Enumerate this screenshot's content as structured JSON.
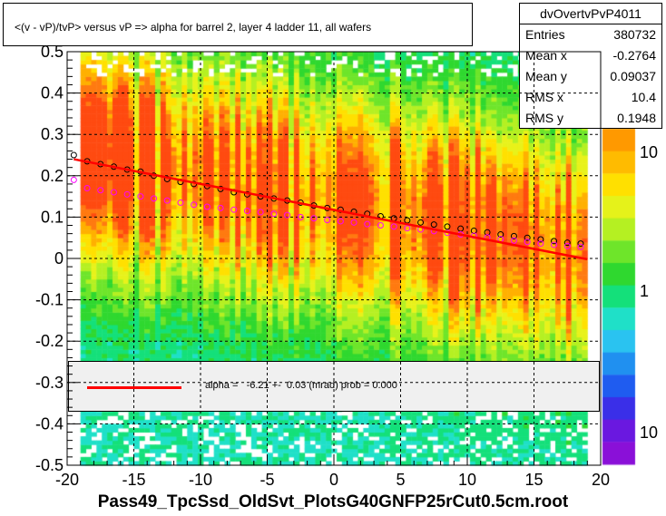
{
  "title": "<(v - vP)/tvP> versus   vP => alpha for barrel 2, layer 4 ladder 11, all wafers",
  "stats": {
    "name": "dvOvertvPvP4011",
    "rows": [
      {
        "key": "Entries",
        "value": "380732"
      },
      {
        "key": "Mean x",
        "value": "-0.2764"
      },
      {
        "key": "Mean y",
        "value": "0.09037"
      },
      {
        "key": "RMS x",
        "value": "10.4"
      },
      {
        "key": "RMS y",
        "value": "0.1948"
      }
    ]
  },
  "fit_legend": "alpha =   -6.21 +-  0.03 (mrad) prob = 0.000",
  "xlabel": "Pass49_TpcSsd_OldSvt_PlotsG40GNFP25rCut0.5cm.root",
  "colors": {
    "fit_line": "#ff0000",
    "profile_black": "#000000",
    "profile_magenta": "#ff00ff",
    "grid": "#000000",
    "legend_background": "#f0f0f0"
  },
  "chart_data": {
    "type": "heatmap",
    "x_range": [
      -20,
      20
    ],
    "y_range": [
      -0.5,
      0.5
    ],
    "x_ticks": [
      "-20",
      "-15",
      "-10",
      "-5",
      "0",
      "5",
      "10",
      "15",
      "20"
    ],
    "y_ticks": [
      "-0.5",
      "-0.4",
      "-0.3",
      "-0.2",
      "-0.1",
      "0",
      "0.1",
      "0.2",
      "0.3",
      "0.4",
      "0.5"
    ],
    "z_scale": "log",
    "z_ticks": [
      "10",
      "1",
      "10"
    ],
    "grid": true,
    "series": [
      {
        "kind": "profile",
        "color": "#000000",
        "x": [
          -19.5,
          -18.5,
          -17.5,
          -16.5,
          -15.5,
          -14.5,
          -13.5,
          -12.5,
          -11.5,
          -10.5,
          -9.5,
          -8.5,
          -7.5,
          -6.5,
          -5.5,
          -4.5,
          -3.5,
          -2.5,
          -1.5,
          -0.5,
          0.5,
          1.5,
          2.5,
          3.5,
          4.5,
          5.5,
          6.5,
          7.5,
          8.5,
          9.5,
          10.5,
          11.5,
          12.5,
          13.5,
          14.5,
          15.5,
          16.5,
          17.5,
          18.5
        ],
        "y": [
          0.25,
          0.235,
          0.228,
          0.222,
          0.215,
          0.21,
          0.2,
          0.192,
          0.185,
          0.18,
          0.175,
          0.168,
          0.16,
          0.155,
          0.15,
          0.145,
          0.14,
          0.135,
          0.128,
          0.122,
          0.118,
          0.113,
          0.108,
          0.102,
          0.097,
          0.092,
          0.087,
          0.082,
          0.077,
          0.072,
          0.067,
          0.063,
          0.058,
          0.054,
          0.05,
          0.046,
          0.042,
          0.038,
          0.036
        ]
      },
      {
        "kind": "profile",
        "color": "#ff00ff",
        "x": [
          -19.5,
          -18.5,
          -17.5,
          -16.5,
          -15.5,
          -14.5,
          -13.5,
          -12.5,
          -11.5,
          -10.5,
          -9.5,
          -8.5,
          -7.5,
          -6.5,
          -5.5,
          -4.5,
          -3.5,
          -2.5,
          -1.5,
          -0.5,
          0.5,
          1.5,
          2.5,
          3.5,
          4.5,
          5.5,
          6.5,
          7.5,
          8.5,
          9.5,
          10.5,
          11.5,
          12.5,
          13.5,
          14.5,
          15.5,
          16.5,
          17.5,
          18.5
        ],
        "y": [
          0.19,
          0.17,
          0.165,
          0.16,
          0.155,
          0.15,
          0.145,
          0.14,
          0.135,
          0.13,
          0.125,
          0.122,
          0.118,
          0.115,
          0.112,
          0.108,
          0.105,
          0.1,
          0.097,
          0.093,
          0.09,
          0.087,
          0.083,
          0.08,
          0.077,
          0.073,
          0.07,
          0.066,
          0.062,
          0.058,
          0.055,
          0.051,
          0.047,
          0.043,
          0.04,
          0.036,
          0.033,
          0.03,
          0.028
        ]
      },
      {
        "kind": "fit",
        "color": "#ff0000",
        "x": [
          -19.5,
          19
        ],
        "y": [
          0.24,
          -0.002
        ]
      }
    ]
  }
}
